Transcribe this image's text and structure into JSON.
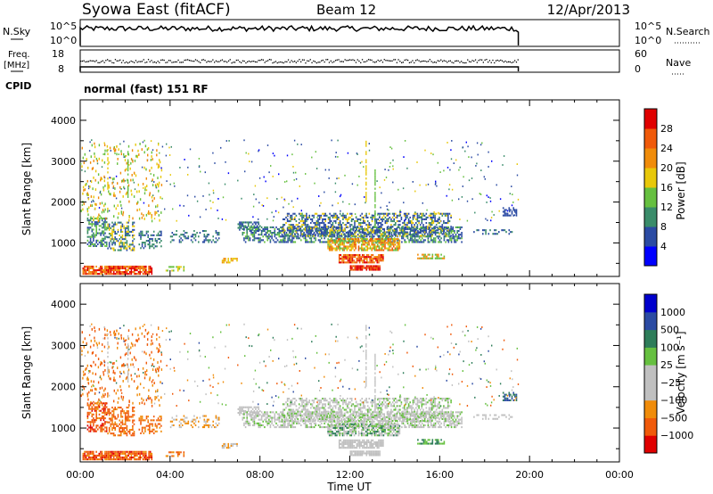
{
  "header": {
    "station": "Syowa East (fitACF)",
    "beam": "Beam 12",
    "date": "12/Apr/2013"
  },
  "top_panels": {
    "nsky_label": "N.Sky",
    "nsky_ticks": [
      "10^5",
      "10^0"
    ],
    "nsearch_label": "N.Search",
    "nsearch_ticks": [
      "10^5",
      "10^0"
    ],
    "freq_label": "Freq.",
    "freq_unit": "[MHz]",
    "freq_ticks": [
      "18",
      "8"
    ],
    "nave_label": "Nave",
    "nave_ticks": [
      "60",
      "0"
    ],
    "cpid_label": "CPID",
    "cpid_text": "normal (fast) 151 RF"
  },
  "colors": {
    "power": [
      "#0000ff",
      "#2b4ba3",
      "#3a8c6a",
      "#66c040",
      "#e8c80a",
      "#f08c0a",
      "#f05a0a",
      "#e00000"
    ],
    "velocity": [
      "#e00000",
      "#f05a0a",
      "#f08c0a",
      "#c0c0c0",
      "#c0c0c0",
      "#66c040",
      "#2e7d5a",
      "#2b4ba3",
      "#0000cd"
    ]
  },
  "chart_data": [
    {
      "type": "heatmap",
      "panel": "power",
      "ylabel": "Slant Range [km]",
      "yticks": [
        "1000",
        "2000",
        "3000",
        "4000"
      ],
      "ylim": [
        180,
        4500
      ],
      "xlim": [
        0,
        24
      ],
      "colorbar_label": "Power [dB]",
      "colorbar_ticks": [
        "4",
        "8",
        "12",
        "16",
        "20",
        "24",
        "28"
      ],
      "colorbar_range": [
        0,
        30
      ],
      "data_coverage_hours": [
        0,
        19.5
      ]
    },
    {
      "type": "heatmap",
      "panel": "velocity",
      "ylabel": "Slant Range [km]",
      "yticks": [
        "1000",
        "2000",
        "3000",
        "4000"
      ],
      "ylim": [
        180,
        4500
      ],
      "xlim": [
        0,
        24
      ],
      "xlabel": "Time UT",
      "xticks": [
        "00:00",
        "04:00",
        "08:00",
        "12:00",
        "16:00",
        "20:00",
        "00:00"
      ],
      "colorbar_label": "Velocity [m s⁻¹]",
      "colorbar_ticks": [
        "1000",
        "500",
        "100",
        "25",
        "−25",
        "−100",
        "−500",
        "−1000"
      ],
      "data_coverage_hours": [
        0,
        19.5
      ]
    }
  ]
}
